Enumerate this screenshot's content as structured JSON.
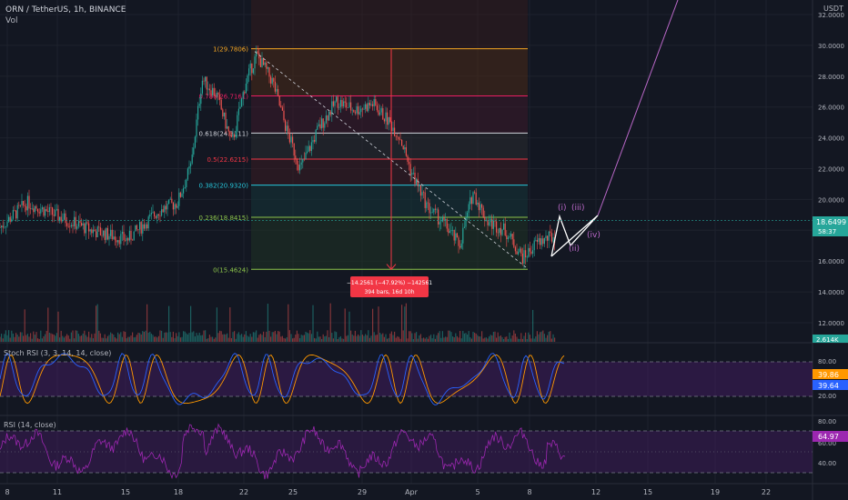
{
  "header": {
    "title": "ORN / TetherUS, 1h, BINANCE",
    "vol_label": "Vol",
    "currency": "USDT"
  },
  "price_axis": {
    "ticks": [
      "32.0000",
      "30.0000",
      "28.0000",
      "26.0000",
      "24.0000",
      "22.0000",
      "20.0000",
      "18.0000",
      "16.0000",
      "14.0000",
      "12.0000"
    ],
    "last_price": "18.6499",
    "countdown": "58:37",
    "vol_badge": "2.614K"
  },
  "time_axis": {
    "ticks": [
      "8",
      "11",
      "15",
      "18",
      "22",
      "25",
      "29",
      "Apr",
      "5",
      "8",
      "12",
      "15",
      "19",
      "22"
    ]
  },
  "fib": {
    "levels": [
      {
        "label": "1(29.7806)",
        "price": 29.7806,
        "color": "#f5a623"
      },
      {
        "label": "0.786(26.7161)",
        "price": 26.7161,
        "color": "#e91e63"
      },
      {
        "label": "0.618(24.3111)",
        "price": 24.3111,
        "color": "#d1d4dc"
      },
      {
        "label": "0.5(22.6215)",
        "price": 22.6215,
        "color": "#f23645"
      },
      {
        "label": "0.382(20.9320)",
        "price": 20.932,
        "color": "#26c6da"
      },
      {
        "label": "0.236(18.8415)",
        "price": 18.8415,
        "color": "#8bc34a"
      },
      {
        "label": "0(15.4624)",
        "price": 15.4624,
        "color": "#8bc34a"
      }
    ]
  },
  "measure": {
    "line1": "−14.2561 (−47.92%) −142561",
    "line2": "394 bars, 16d 10h"
  },
  "waves": {
    "w1": "(i)",
    "w2": "(ii)",
    "w3": "(iii)",
    "w4": "(iv)"
  },
  "stoch": {
    "title": "Stoch RSI (3, 3, 14, 14, close)",
    "ticks": [
      "80.00",
      "20.00"
    ],
    "k": "39.86",
    "d": "39.64"
  },
  "rsi": {
    "title": "RSI (14, close)",
    "ticks": [
      "80.00",
      "60.00",
      "40.00"
    ],
    "value": "64.97"
  },
  "colors": {
    "up": "#26a69a",
    "down": "#ef5350",
    "stoch_k": "#2962ff",
    "stoch_d": "#ff9800",
    "rsi": "#9c27b0",
    "fill": "#4a1d6b"
  },
  "chart_data": {
    "type": "line",
    "title": "ORN / TetherUS, 1h, BINANCE",
    "x": [
      "8",
      "11",
      "15",
      "18",
      "22",
      "25",
      "29",
      "Apr",
      "5",
      "8"
    ],
    "series": [
      {
        "values": [
          18.6,
          19.4,
          17.5,
          18.8,
          29.78,
          22.5,
          26.0,
          24.5,
          17.2,
          16.9
        ]
      }
    ],
    "last_value": 18.6499,
    "ylim": [
      11.0,
      32.5
    ],
    "grid": true
  }
}
